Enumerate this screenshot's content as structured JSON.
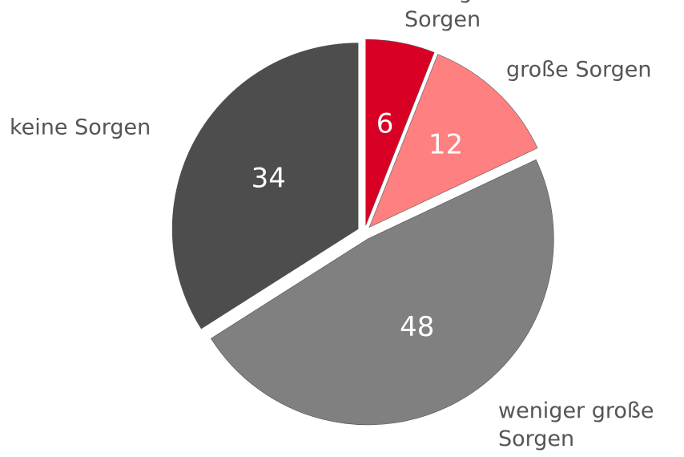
{
  "chart_data": {
    "type": "pie",
    "categories": [
      "sehr große Sorgen",
      "große Sorgen",
      "weniger große Sorgen",
      "keine Sorgen"
    ],
    "values": [
      6,
      12,
      48,
      34
    ],
    "colors": [
      "#d90026",
      "#ff8080",
      "#808080",
      "#4d4d4d"
    ]
  }
}
